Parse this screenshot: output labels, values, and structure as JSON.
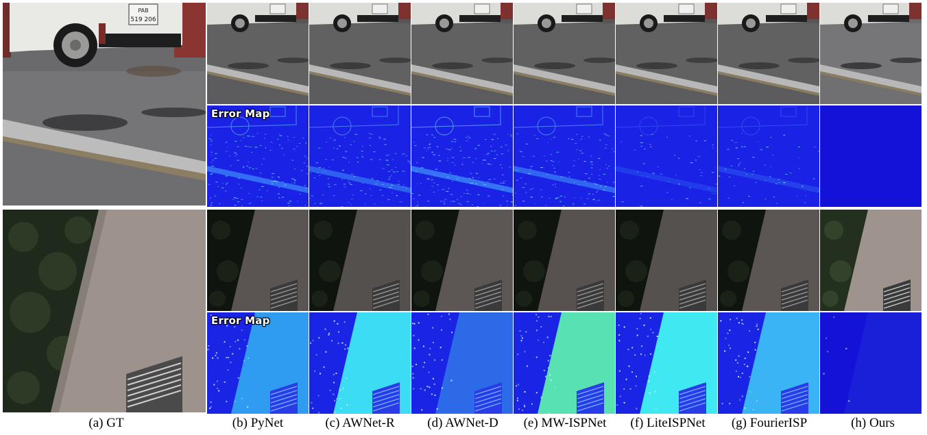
{
  "error_map_label": "Error Map",
  "captions": [
    "(a) GT",
    "(b) PyNet",
    "(c) AWNet-R",
    "(d) AWNet-D",
    "(e) MW-ISPNet",
    "(f) LiteISPNet",
    "(g) FourierISP",
    "(h) Ours"
  ],
  "scenes": [
    {
      "name": "street-van-scene",
      "plate_text": "519 206"
    },
    {
      "name": "building-wall-scene"
    }
  ],
  "colors": {
    "background": "#ffffff",
    "error_map_low": "#1a1ee0",
    "error_map_high": "#3ff0ff"
  }
}
